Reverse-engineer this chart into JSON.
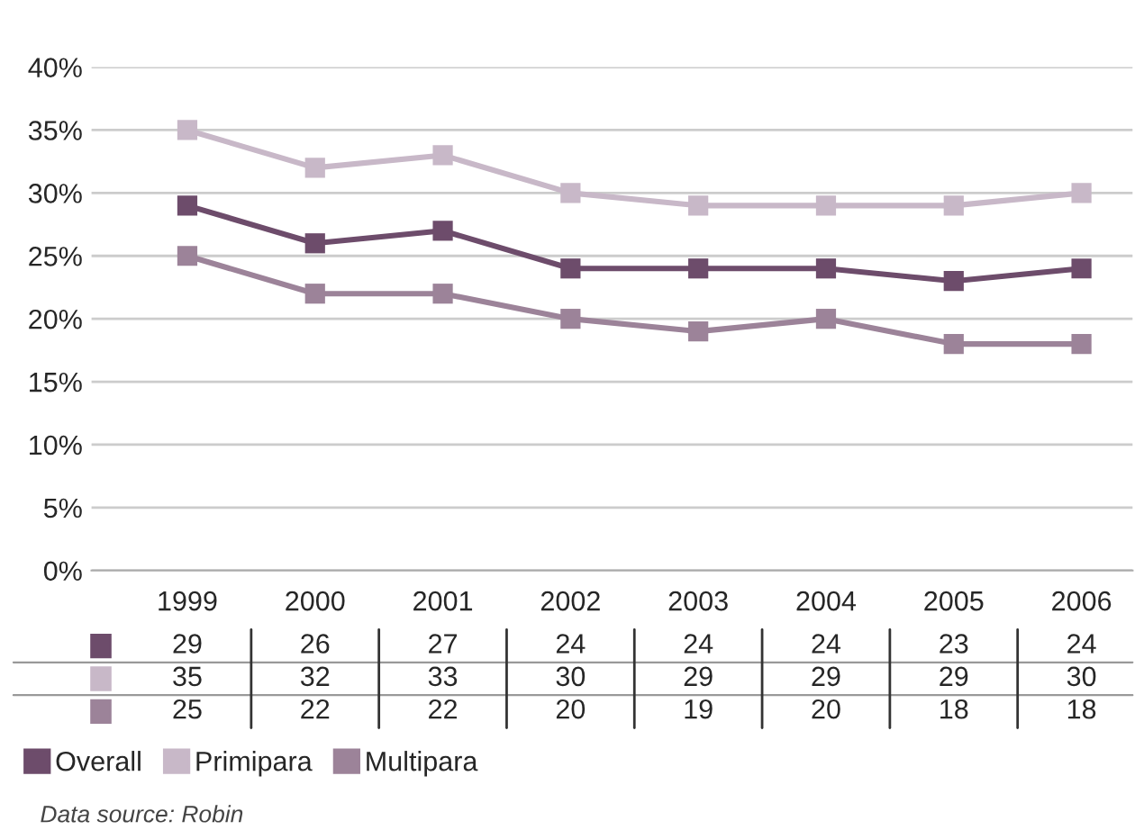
{
  "chart_data": {
    "type": "line",
    "categories": [
      "1999",
      "2000",
      "2001",
      "2002",
      "2003",
      "2004",
      "2005",
      "2006"
    ],
    "series": [
      {
        "name": "Overall",
        "color": "#6d4c6b",
        "values": [
          29,
          26,
          27,
          24,
          24,
          24,
          23,
          24
        ]
      },
      {
        "name": "Primipara",
        "color": "#c8b8c8",
        "values": [
          35,
          32,
          33,
          30,
          29,
          29,
          29,
          30
        ]
      },
      {
        "name": "Multipara",
        "color": "#9c8399",
        "values": [
          25,
          22,
          22,
          20,
          19,
          20,
          18,
          18
        ]
      }
    ],
    "ylim": [
      0,
      40
    ],
    "yticks": [
      {
        "value": 0,
        "label": "0%"
      },
      {
        "value": 5,
        "label": "5%"
      },
      {
        "value": 10,
        "label": "10%"
      },
      {
        "value": 15,
        "label": "15%"
      },
      {
        "value": 20,
        "label": "20%"
      },
      {
        "value": 25,
        "label": "25%"
      },
      {
        "value": 30,
        "label": "30%"
      },
      {
        "value": 35,
        "label": "35%"
      },
      {
        "value": 40,
        "label": "40%"
      }
    ],
    "grid": "y",
    "marker": "square",
    "line_style": "solid",
    "data_labels": true,
    "legend": "bottom left",
    "annotations": [
      "Data source: Robin"
    ]
  }
}
